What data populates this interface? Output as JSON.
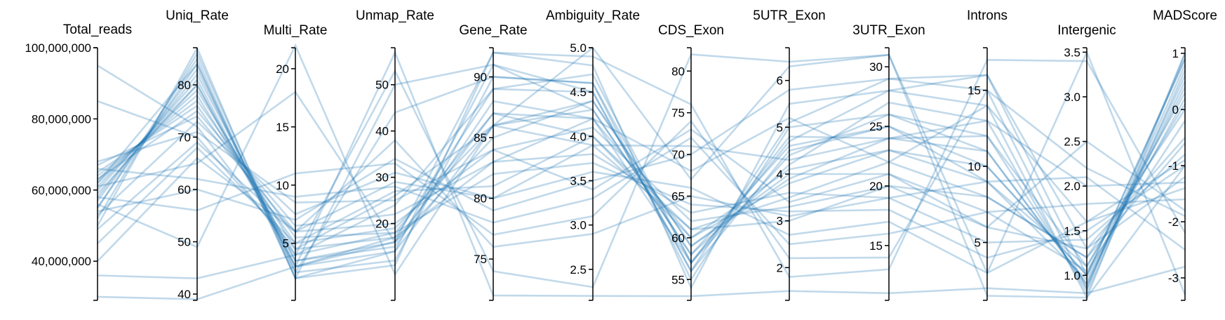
{
  "chart_data": {
    "type": "parallel-coordinates",
    "line_color": "#1f77b4",
    "axes": [
      {
        "name": "Total_reads",
        "min": 29000000,
        "max": 100000000,
        "ticks": [
          40000000,
          60000000,
          80000000,
          100000000
        ],
        "tick_labels": [
          "40,000,000",
          "60,000,000",
          "80,000,000",
          "100,000,000"
        ],
        "label_side": "left"
      },
      {
        "name": "Uniq_Rate",
        "min": 38.8,
        "max": 87.1,
        "ticks": [
          40,
          50,
          60,
          70,
          80
        ],
        "tick_labels": [
          "40",
          "50",
          "60",
          "70",
          "80"
        ],
        "label_side": "left"
      },
      {
        "name": "Multi_Rate",
        "min": 0.1,
        "max": 21.8,
        "ticks": [
          5,
          10,
          15,
          20
        ],
        "tick_labels": [
          "5",
          "10",
          "15",
          "20"
        ],
        "label_side": "left"
      },
      {
        "name": "Unmap_Rate",
        "min": 3.4,
        "max": 58.0,
        "ticks": [
          20,
          30,
          40,
          50
        ],
        "tick_labels": [
          "20",
          "30",
          "40",
          "50"
        ],
        "label_side": "left"
      },
      {
        "name": "Gene_Rate",
        "min": 71.6,
        "max": 92.4,
        "ticks": [
          75,
          80,
          85,
          90
        ],
        "tick_labels": [
          "75",
          "80",
          "85",
          "90"
        ],
        "label_side": "left"
      },
      {
        "name": "Ambiguity_Rate",
        "min": 2.15,
        "max": 5.0,
        "ticks": [
          2.5,
          3.0,
          3.5,
          4.0,
          4.5,
          5.0
        ],
        "tick_labels": [
          "2.5",
          "3.0",
          "3.5",
          "4.0",
          "4.5",
          "5.0"
        ],
        "label_side": "left"
      },
      {
        "name": "CDS_Exon",
        "min": 52.5,
        "max": 82.8,
        "ticks": [
          55,
          60,
          65,
          70,
          75,
          80
        ],
        "tick_labels": [
          "55",
          "60",
          "65",
          "70",
          "75",
          "80"
        ],
        "label_side": "left"
      },
      {
        "name": "5UTR_Exon",
        "min": 1.3,
        "max": 6.7,
        "ticks": [
          2,
          3,
          4,
          5,
          6
        ],
        "tick_labels": [
          "2",
          "3",
          "4",
          "5",
          "6"
        ],
        "label_side": "left"
      },
      {
        "name": "3UTR_Exon",
        "min": 10.4,
        "max": 31.6,
        "ticks": [
          15,
          20,
          25,
          30
        ],
        "tick_labels": [
          "15",
          "20",
          "25",
          "30"
        ],
        "label_side": "left"
      },
      {
        "name": "Introns",
        "min": 1.2,
        "max": 17.8,
        "ticks": [
          5,
          10,
          15
        ],
        "tick_labels": [
          "5",
          "10",
          "15"
        ],
        "label_side": "left"
      },
      {
        "name": "Intergenic",
        "min": 0.72,
        "max": 3.55,
        "ticks": [
          1.0,
          1.5,
          2.0,
          2.5,
          3.0,
          3.5
        ],
        "tick_labels": [
          "1.0",
          "1.5",
          "2.0",
          "2.5",
          "3.0",
          "3.5"
        ],
        "label_side": "left"
      },
      {
        "name": "MADScore",
        "min": -3.4,
        "max": 1.1,
        "ticks": [
          -3,
          -2,
          -1,
          0,
          1
        ],
        "tick_labels": [
          "-3",
          "-2",
          "-1",
          "0",
          "1"
        ],
        "label_side": "left"
      }
    ],
    "samples": [
      [
        61000000,
        80,
        3.0,
        17,
        89,
        4.5,
        56,
        4.5,
        25,
        10,
        1.0,
        0.9
      ],
      [
        55000000,
        84,
        2.0,
        14,
        91,
        4.3,
        58,
        4.2,
        27,
        13,
        0.8,
        0.7
      ],
      [
        63000000,
        78,
        4.0,
        18,
        87,
        4.0,
        60,
        3.8,
        23,
        9,
        1.1,
        0.3
      ],
      [
        58000000,
        82,
        3.5,
        15,
        88,
        4.2,
        57,
        4.8,
        24,
        11,
        0.9,
        0.5
      ],
      [
        65000000,
        76,
        5.0,
        19,
        86,
        3.9,
        61,
        3.5,
        22,
        8,
        1.2,
        0.0
      ],
      [
        52000000,
        86,
        2.5,
        12,
        90,
        4.6,
        55,
        5.0,
        26,
        12,
        0.85,
        0.8
      ],
      [
        60000000,
        81,
        3.0,
        16,
        85,
        4.4,
        59,
        4.0,
        21,
        7,
        1.05,
        -0.2
      ],
      [
        67000000,
        74,
        6.0,
        20,
        84,
        4.1,
        62,
        3.3,
        20,
        6,
        1.3,
        -0.5
      ],
      [
        50000000,
        87,
        2.0,
        11,
        92,
        4.8,
        54,
        5.5,
        28,
        14,
        0.75,
        1.0
      ],
      [
        62000000,
        79,
        4.5,
        17,
        83,
        3.8,
        63,
        3.6,
        19,
        5,
        1.4,
        -0.8
      ],
      [
        57000000,
        83,
        3.0,
        14,
        86,
        4.3,
        58,
        4.6,
        25,
        9,
        0.95,
        0.4
      ],
      [
        64000000,
        77,
        5.5,
        18,
        82,
        3.7,
        64,
        3.2,
        18,
        4,
        1.5,
        -1.0
      ],
      [
        59000000,
        80,
        3.5,
        16,
        87,
        4.2,
        60,
        4.1,
        23,
        10,
        1.0,
        0.2
      ],
      [
        95000000,
        72,
        4.0,
        24,
        89,
        4.7,
        57,
        4.4,
        26,
        11,
        0.9,
        0.6
      ],
      [
        85000000,
        70,
        4.5,
        26,
        86,
        4.4,
        59,
        3.9,
        24,
        12,
        1.1,
        0.1
      ],
      [
        45000000,
        68,
        5.0,
        27,
        81,
        4.0,
        61,
        3.0,
        20,
        8,
        1.2,
        -0.6
      ],
      [
        40000000,
        66,
        6.0,
        29,
        80,
        3.6,
        66,
        2.7,
        17,
        3,
        1.6,
        -1.4
      ],
      [
        36000000,
        43,
        4.0,
        53,
        74,
        2.3,
        82,
        6.4,
        31,
        3,
        3.5,
        -3.3
      ],
      [
        30000000,
        39,
        3.0,
        57,
        72,
        2.2,
        53,
        1.5,
        11,
        2,
        0.8,
        -2.8
      ],
      [
        54000000,
        60,
        7.0,
        34,
        79,
        3.5,
        70,
        5.8,
        29,
        16,
        1.3,
        -1.2
      ],
      [
        66000000,
        62,
        9.0,
        28,
        78,
        3.3,
        72,
        2.5,
        16,
        7,
        1.8,
        -1.6
      ],
      [
        58000000,
        56,
        11.0,
        33,
        77,
        3.1,
        74,
        2.2,
        14,
        15,
        2.2,
        -1.9
      ],
      [
        61000000,
        65,
        18.0,
        16,
        92,
        4.9,
        76,
        1.8,
        13,
        17,
        3.4,
        -2.2
      ],
      [
        56000000,
        49,
        22.0,
        9,
        86,
        5.0,
        67,
        6.3,
        31,
        1.5,
        0.75,
        -1.0
      ],
      [
        63000000,
        75,
        6.5,
        22,
        83,
        4.2,
        68,
        5.2,
        22,
        14,
        1.6,
        -0.9
      ],
      [
        53000000,
        73,
        7.5,
        31,
        80,
        3.9,
        71,
        4.3,
        24,
        13,
        2.0,
        -1.3
      ],
      [
        68000000,
        71,
        8.5,
        25,
        84,
        3.4,
        73,
        3.4,
        21,
        6,
        2.5,
        -1.8
      ],
      [
        49000000,
        69,
        6.0,
        38,
        76,
        2.9,
        65,
        3.1,
        19,
        9,
        2.1,
        -2.5
      ],
      [
        62000000,
        84,
        2.5,
        44,
        90,
        4.6,
        57,
        4.7,
        28,
        16,
        1.0,
        0.9
      ],
      [
        55000000,
        85,
        2.0,
        50,
        91,
        4.5,
        56,
        5.1,
        29,
        15,
        0.85,
        1.0
      ]
    ]
  }
}
